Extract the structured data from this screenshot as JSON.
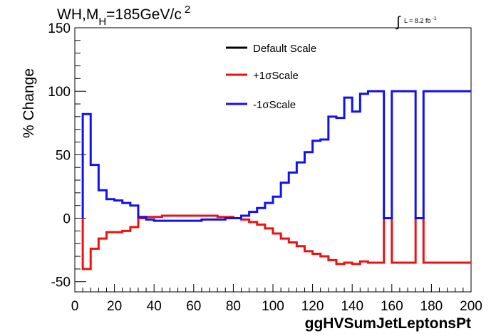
{
  "chart_data": {
    "type": "line",
    "title_main": "WH,M",
    "title_sub": "H",
    "title_rest": "=185GeV/c",
    "title_sup": "2",
    "lumi_text": "L = 8.2 fb",
    "lumi_sup": "-1",
    "xlabel": "ggHVSumJetLeptonsPt",
    "ylabel": "% Change",
    "xlim": [
      0,
      200
    ],
    "ylim": [
      -58,
      150
    ],
    "xticks": [
      0,
      20,
      40,
      60,
      80,
      100,
      120,
      140,
      160,
      180,
      200
    ],
    "yticks": [
      -50,
      0,
      50,
      100,
      150
    ],
    "legend_position": "top-center",
    "grid": false,
    "bin_width": 4,
    "series": [
      {
        "name": "Default Scale",
        "color": "#000000",
        "x": [],
        "values": []
      },
      {
        "name": "+1σScale",
        "color": "#ee1111",
        "x": [
          4,
          8,
          12,
          16,
          20,
          24,
          28,
          32,
          36,
          40,
          44,
          48,
          52,
          56,
          60,
          64,
          68,
          72,
          76,
          80,
          84,
          88,
          92,
          96,
          100,
          104,
          108,
          112,
          116,
          120,
          124,
          128,
          132,
          136,
          140,
          144,
          148,
          152,
          156,
          160,
          164,
          168,
          172,
          176,
          180,
          184,
          188,
          192,
          196
        ],
        "values": [
          -40,
          -24,
          -16,
          -11,
          -11,
          -10,
          -7,
          0,
          1,
          1,
          2,
          2,
          2,
          2,
          2,
          2,
          2,
          1,
          1,
          0,
          -1,
          -3,
          -5,
          -8,
          -12,
          -16,
          -19,
          -22,
          -26,
          -28,
          -30,
          -33,
          -36,
          -35,
          -36,
          -34,
          -35,
          -35,
          0,
          -35,
          -35,
          -35,
          0,
          -35,
          -35,
          -35,
          -35,
          -35,
          -35
        ]
      },
      {
        "name": "-1σScale",
        "color": "#1111ee",
        "x": [
          4,
          8,
          12,
          16,
          20,
          24,
          28,
          32,
          36,
          40,
          44,
          48,
          52,
          56,
          60,
          64,
          68,
          72,
          76,
          80,
          84,
          88,
          92,
          96,
          100,
          104,
          108,
          112,
          116,
          120,
          124,
          128,
          132,
          136,
          140,
          144,
          148,
          152,
          156,
          160,
          164,
          168,
          172,
          176,
          180,
          184,
          188,
          192,
          196
        ],
        "values": [
          82,
          42,
          22,
          15,
          14,
          12,
          10,
          1,
          -1,
          -2,
          -2,
          -2,
          -2,
          -2,
          -2,
          -1,
          -1,
          -1,
          0,
          0,
          2,
          5,
          8,
          12,
          17,
          28,
          36,
          44,
          52,
          61,
          62,
          80,
          79,
          95,
          84,
          98,
          100,
          100,
          0,
          100,
          100,
          100,
          0,
          100,
          100,
          100,
          100,
          100,
          100
        ]
      }
    ]
  }
}
